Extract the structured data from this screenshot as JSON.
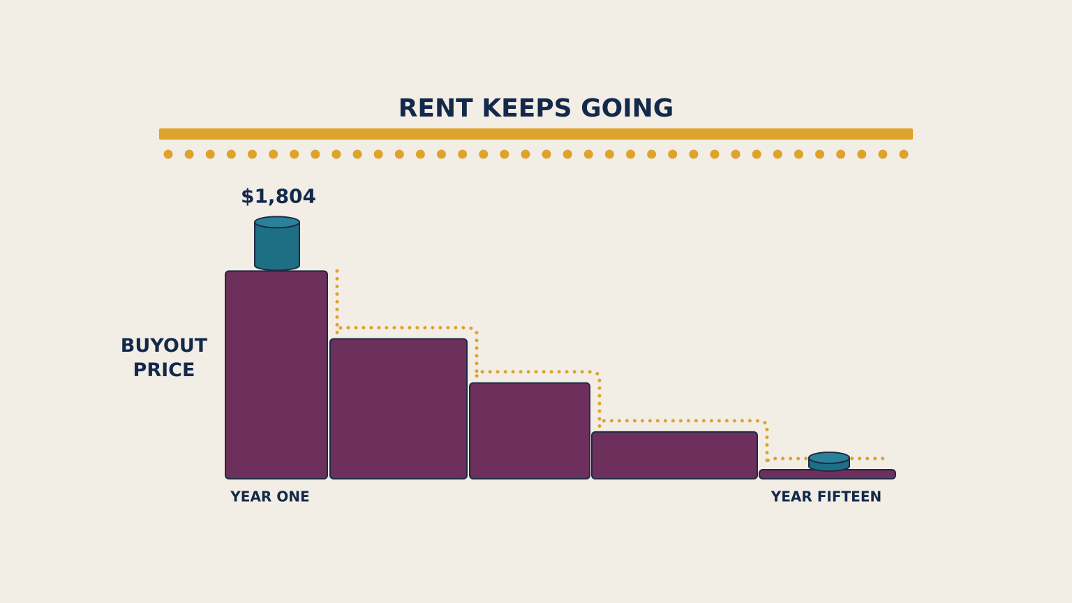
{
  "chart_data": {
    "type": "step-bar",
    "title": "RENT KEEPS GOING",
    "ylabel": "BUYOUT PRICE",
    "categories": [
      "YEAR ONE",
      null,
      null,
      null,
      "YEAR FIFTEEN"
    ],
    "values": [
      1804,
      1215,
      832,
      407,
      79
    ],
    "value_labels": [
      "$1,804",
      null,
      null,
      null,
      null
    ],
    "color": "#6d2f5b"
  }
}
